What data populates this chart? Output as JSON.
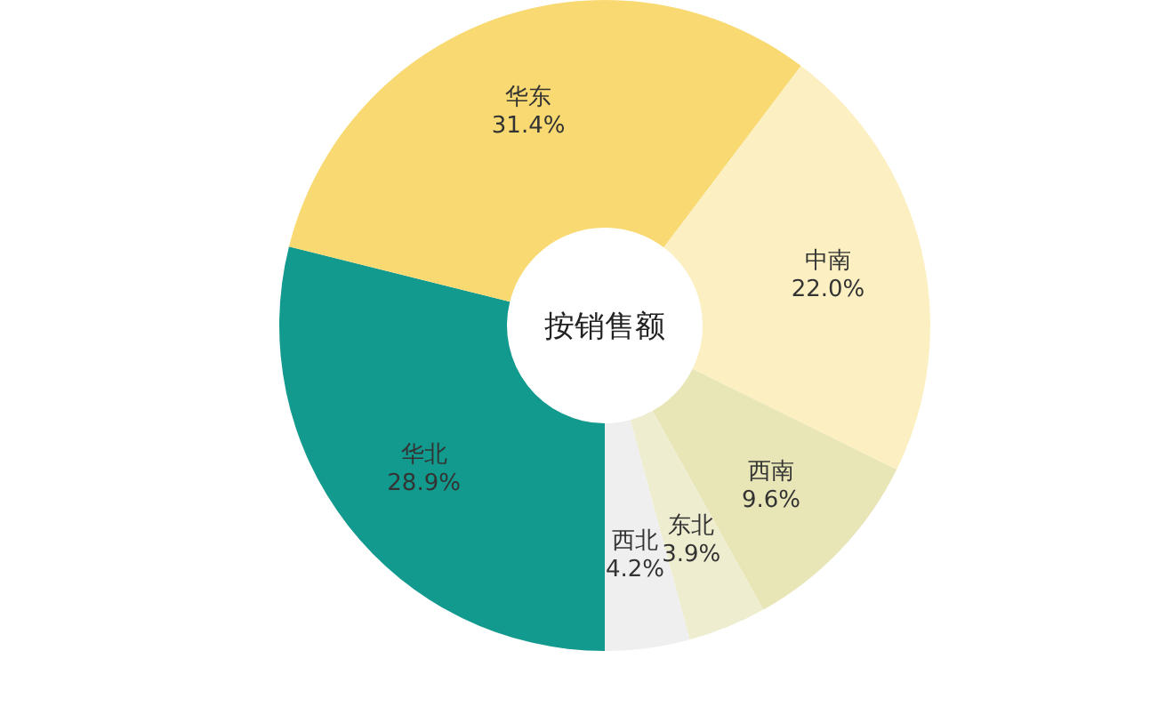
{
  "chart_data": {
    "type": "donut",
    "title": "按销售额",
    "categories": [
      "华北",
      "华东",
      "中南",
      "西南",
      "东北",
      "西北"
    ],
    "values": [
      28.9,
      31.4,
      22.0,
      9.6,
      3.9,
      4.2
    ],
    "colors": [
      "#139a8e",
      "#f9da72",
      "#fcf0c2",
      "#e8e6b7",
      "#efedd0",
      "#efefef"
    ],
    "value_labels": [
      "28.9%",
      "31.4%",
      "22.0%",
      "9.6%",
      "3.9%",
      "4.2%"
    ],
    "legend": false
  }
}
